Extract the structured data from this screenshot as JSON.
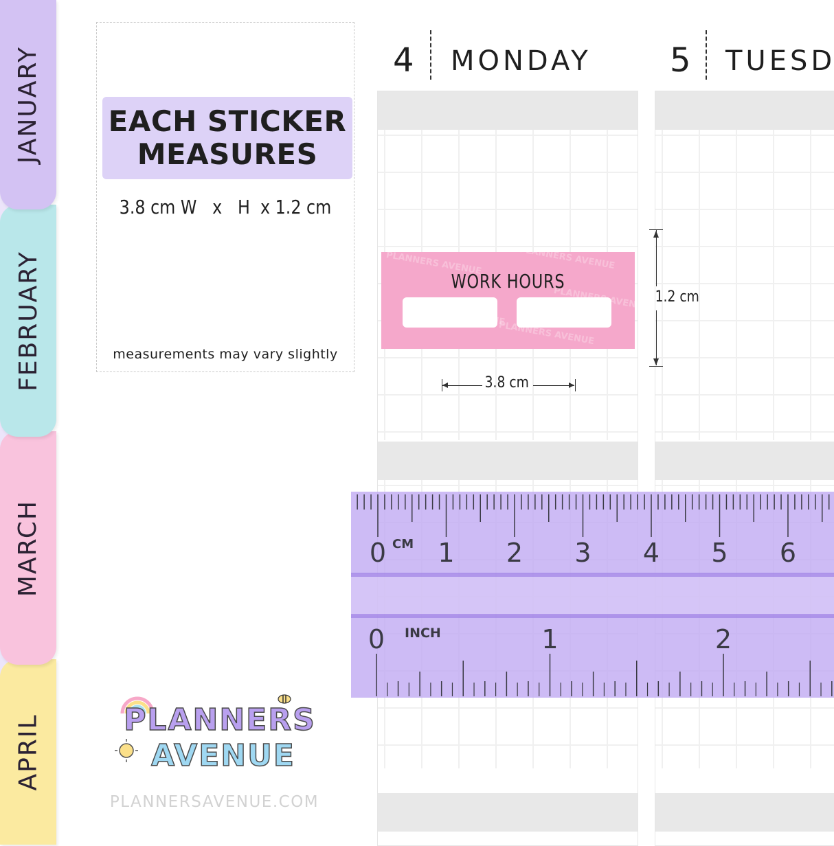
{
  "months": [
    "JANUARY",
    "FEBRUARY",
    "MARCH",
    "APRIL"
  ],
  "card": {
    "heading_line1": "EACH STICKER",
    "heading_line2": "MEASURES",
    "dimensions": "3.8 cm W   x   H  x 1.2 cm",
    "note": "measurements may vary slightly"
  },
  "days": [
    {
      "number": "4",
      "name": "MONDAY"
    },
    {
      "number": "5",
      "name": "TUESD"
    }
  ],
  "sticker": {
    "title": "WORK HOURS",
    "watermark": "PLANNERS AVENUE",
    "width_label": "3.8 cm",
    "height_label": "1.2 cm"
  },
  "ruler": {
    "cm_unit": "CM",
    "inch_unit": "INCH",
    "cm_labels": [
      "0",
      "1",
      "2",
      "3",
      "4",
      "5",
      "6"
    ],
    "inch_labels": [
      "0",
      "1",
      "2"
    ]
  },
  "brand": {
    "logo_line1": "PLANNERS",
    "logo_line2": "AVENUE",
    "website": "PLANNERSAVENUE.COM"
  },
  "colors": {
    "tab_january": "#d3c2f3",
    "tab_february": "#b9e7ea",
    "tab_march": "#f9c3dd",
    "tab_april": "#fbeaa0",
    "sticker_pink": "#f5a8cb",
    "ruler_purple": "#bfa8f2"
  }
}
